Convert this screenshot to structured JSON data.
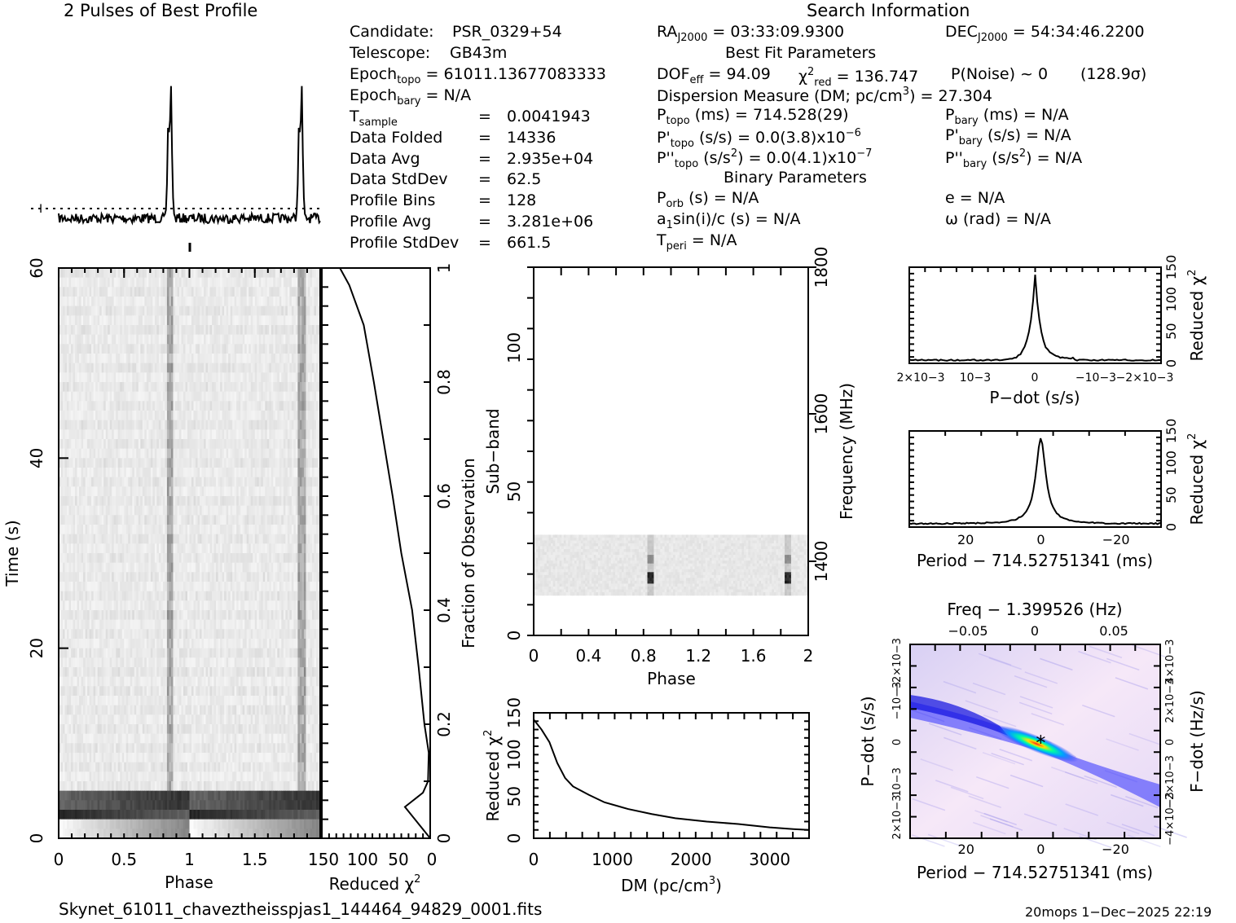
{
  "header": {
    "profile_title": "2 Pulses of Best Profile",
    "search_title": "Search Information",
    "best_fit_title": "Best Fit Parameters",
    "binary_title": "Binary Parameters"
  },
  "candidate_info": {
    "candidate": {
      "label": "Candidate:",
      "value": "PSR_0329+54"
    },
    "telescope": {
      "label": "Telescope:",
      "value": "GB43m"
    },
    "epoch_topo": {
      "label": "Epoch",
      "sub": "topo",
      "value": "= 61011.13677083333"
    },
    "epoch_bary": {
      "label": "Epoch",
      "sub": "bary",
      "value": "= N/A"
    },
    "rows": [
      {
        "label": "T",
        "sub": "sample",
        "eq": "=",
        "value": "0.0041943"
      },
      {
        "label": "Data Folded",
        "sub": "",
        "eq": "=",
        "value": "14336"
      },
      {
        "label": "Data Avg",
        "sub": "",
        "eq": "=",
        "value": "2.935e+04"
      },
      {
        "label": "Data StdDev",
        "sub": "",
        "eq": "=",
        "value": "62.5"
      },
      {
        "label": "Profile Bins",
        "sub": "",
        "eq": "=",
        "value": "128"
      },
      {
        "label": "Profile Avg",
        "sub": "",
        "eq": "=",
        "value": "3.281e+06"
      },
      {
        "label": "Profile StdDev",
        "sub": "",
        "eq": "=",
        "value": "661.5"
      }
    ]
  },
  "search_info": {
    "ra": {
      "label": "RA",
      "sub": "J2000",
      "value": "= 03:33:09.9300"
    },
    "dec": {
      "label": "DEC",
      "sub": "J2000",
      "value": "= 54:34:46.2200"
    },
    "dof": {
      "label": "DOF",
      "sub": "eff",
      "value": "= 94.09"
    },
    "chi2": {
      "label": "χ",
      "sup": "2",
      "sub": "red",
      "value": "= 136.747"
    },
    "pnoise": "P(Noise) ~ 0",
    "sigma": "(128.9σ)",
    "dm": {
      "label": "Dispersion Measure (DM; pc/cm",
      "sup": "3",
      "value": ") = 27.304"
    },
    "p_topo": {
      "label": "P",
      "sub": "topo",
      "value": "(ms) =  714.528(29)"
    },
    "p_bary": {
      "label": "P",
      "sub": "bary",
      "value": "(ms) = N/A"
    },
    "pd_topo": {
      "label": "P'",
      "sub": "topo",
      "value": "(s/s) = 0.0(3.8)x10",
      "sup": "−6"
    },
    "pd_bary": {
      "label": "P'",
      "sub": "bary",
      "value": "(s/s) = N/A"
    },
    "pdd_topo": {
      "label": "P''",
      "sub": "topo",
      "value1": "(s/s",
      "sup1": "2",
      "value2": ") = 0.0(4.1)x10",
      "sup2": "−7"
    },
    "pdd_bary": {
      "label": "P''",
      "sub": "bary",
      "value1": "(s/s",
      "sup1": "2",
      "value2": ") = N/A"
    },
    "p_orb": {
      "label": "P",
      "sub": "orb",
      "value": "(s) = N/A"
    },
    "e": "e = N/A",
    "a1": {
      "label": "a",
      "sub": "1",
      "value": "sin(i)/c (s) = N/A"
    },
    "omega": "ω (rad) = N/A",
    "t_peri": {
      "label": "T",
      "sub": "peri",
      "value": "= N/A"
    }
  },
  "footer": {
    "filename": "Skynet_61011_chaveztheisspjas1_144464_94829_0001.fits",
    "stamp": "20mops   1−Dec−2025 22:19"
  },
  "colors": {
    "ink": "#000000",
    "grey_mid": "#8a8a8a",
    "heat_low": "#f6e8f8",
    "heat_mid": "#2a2aff",
    "heat_high": "#00ffa0",
    "heat_peak": "#ff2020"
  },
  "chart_data": [
    {
      "id": "profile",
      "type": "line",
      "title": "2 Pulses of Best Profile",
      "xlim": [
        0,
        2
      ],
      "description_peaks": [
        0.85,
        1.85
      ],
      "baseline_marker": "dotted"
    },
    {
      "id": "time_phase",
      "type": "heatmap",
      "xlabel": "Phase",
      "ylabel": "Time (s)",
      "xlim": [
        0,
        2
      ],
      "ylim": [
        0,
        60
      ],
      "xticks": [
        "0",
        "0.5",
        "1",
        "1.5"
      ],
      "yticks": [
        "0",
        "20",
        "40",
        "60"
      ],
      "pulse_phases": [
        0.85,
        1.85
      ]
    },
    {
      "id": "reduced_chi2_vs_fraction",
      "type": "line",
      "xlabel": "Reduced χ",
      "xlabel_sup": "2",
      "ylabel": "Fraction of Observation",
      "xlim": [
        150,
        0
      ],
      "ylim": [
        0,
        1
      ],
      "xticks": [
        "150",
        "100",
        "50",
        "0"
      ],
      "yticks": [
        "0",
        "0.2",
        "0.4",
        "0.6",
        "0.8",
        "1"
      ],
      "points": [
        [
          0,
          0
        ],
        [
          35,
          0.055
        ],
        [
          10,
          0.08
        ],
        [
          3,
          0.1
        ],
        [
          2,
          0.15
        ],
        [
          8,
          0.2
        ],
        [
          16,
          0.3
        ],
        [
          25,
          0.4
        ],
        [
          40,
          0.5
        ],
        [
          52,
          0.6
        ],
        [
          65,
          0.7
        ],
        [
          78,
          0.8
        ],
        [
          92,
          0.9
        ],
        [
          112,
          0.97
        ],
        [
          125,
          1.0
        ]
      ]
    },
    {
      "id": "subband_phase",
      "type": "heatmap",
      "xlabel": "Phase",
      "ylabel": "Sub−band",
      "y2label": "Frequency (MHz)",
      "xlim": [
        0,
        2
      ],
      "ylim": [
        0,
        128
      ],
      "xticks": [
        "0",
        "0.4",
        "0.8",
        "1.2",
        "1.6",
        "2"
      ],
      "yticks": [
        "0",
        "50",
        "100"
      ],
      "y2ticks": [
        "1400",
        "1600",
        "1800"
      ],
      "active_band": [
        14,
        35
      ],
      "pulse_phases": [
        0.84,
        1.84
      ]
    },
    {
      "id": "dm_curve",
      "type": "line",
      "xlabel": "DM (pc/cm",
      "xlabel_sup": "3",
      "xlabel_tail": ")",
      "ylabel": "Reduced χ",
      "ylabel_sup": "2",
      "xlim": [
        0,
        3500
      ],
      "ylim": [
        0,
        150
      ],
      "xticks": [
        "0",
        "1000",
        "2000",
        "3000"
      ],
      "yticks": [
        "0",
        "50",
        "100",
        "150"
      ],
      "points": [
        [
          0,
          142
        ],
        [
          100,
          130
        ],
        [
          200,
          115
        ],
        [
          300,
          90
        ],
        [
          400,
          72
        ],
        [
          500,
          62
        ],
        [
          700,
          52
        ],
        [
          900,
          43
        ],
        [
          1200,
          35
        ],
        [
          1500,
          29
        ],
        [
          1800,
          24
        ],
        [
          2200,
          20
        ],
        [
          2600,
          17
        ],
        [
          3000,
          13
        ],
        [
          3300,
          11
        ],
        [
          3500,
          10
        ]
      ]
    },
    {
      "id": "pdot_curve",
      "type": "line",
      "xlabel": "P−dot (s/s)",
      "ylabel": "Reduced χ",
      "ylabel_sup": "2",
      "xlim": [
        0.002,
        -0.002
      ],
      "ylim": [
        0,
        150
      ],
      "xticks": [
        "2×10−3",
        "10−3",
        "0",
        "−10−3",
        "−2×10−3"
      ],
      "yticks": [
        "0",
        "50",
        "100",
        "150"
      ],
      "points": [
        [
          0.002,
          5
        ],
        [
          0.0012,
          4
        ],
        [
          0.0005,
          6
        ],
        [
          0.0003,
          9
        ],
        [
          0.00015,
          25
        ],
        [
          5e-05,
          80
        ],
        [
          0,
          138
        ],
        [
          -5e-05,
          80
        ],
        [
          -0.00015,
          25
        ],
        [
          -0.0003,
          10
        ],
        [
          -0.0004,
          11
        ],
        [
          -0.0007,
          6
        ],
        [
          -0.0012,
          5
        ],
        [
          -0.002,
          7
        ]
      ]
    },
    {
      "id": "period_curve",
      "type": "line",
      "xlabel": "Period − 714.52751341 (ms)",
      "ylabel": "Reduced χ",
      "ylabel_sup": "2",
      "xlim": [
        35,
        -32
      ],
      "ylim": [
        0,
        150
      ],
      "xticks": [
        "20",
        "0",
        "−20"
      ],
      "yticks": [
        "0",
        "50",
        "100",
        "150"
      ],
      "points": [
        [
          35,
          8
        ],
        [
          25,
          7
        ],
        [
          15,
          4
        ],
        [
          8,
          8
        ],
        [
          5,
          18
        ],
        [
          3,
          40
        ],
        [
          1.5,
          85
        ],
        [
          0,
          138
        ],
        [
          -1.5,
          85
        ],
        [
          -3,
          40
        ],
        [
          -5,
          18
        ],
        [
          -8,
          7
        ],
        [
          -12,
          4
        ],
        [
          -20,
          5
        ],
        [
          -32,
          10
        ]
      ]
    },
    {
      "id": "pp_plane",
      "type": "heatmap",
      "title": "Freq − 1.399526 (Hz)",
      "xlabel": "Period − 714.52751341 (ms)",
      "ylabel": "P−dot (s/s)",
      "y2label": "F−dot (Hz/s)",
      "xlim": [
        35,
        -32
      ],
      "ylim": [
        0.0025,
        -0.0025
      ],
      "xticks": [
        "20",
        "0",
        "−20"
      ],
      "x2ticks": [
        "−0.05",
        "0",
        "0.05"
      ],
      "yticks": [
        "2×10−3",
        "10−3",
        "0",
        "−10−3",
        "−2×10−3"
      ],
      "y2ticks": [
        "−4×10−3",
        "−2×10−3",
        "0",
        "2×10−3",
        "4×10−3"
      ],
      "best": [
        0,
        0
      ]
    }
  ]
}
